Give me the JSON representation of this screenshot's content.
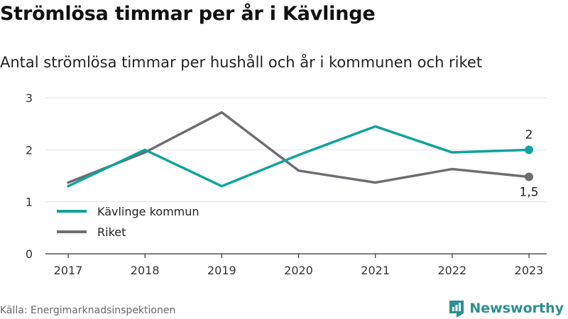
{
  "title": "Strömlösa timmar per år i Kävlinge",
  "subtitle": "Antal strömlösa timmar per hushåll och år i kommunen och riket",
  "source": "Källa: Energimarknadsinspektionen",
  "brand": {
    "name": "Newsworthy",
    "icon": "newsworthy-logo-icon",
    "color": "#2a8f91"
  },
  "chart_data": {
    "type": "line",
    "title": "Strömlösa timmar per år i Kävlinge",
    "subtitle": "Antal strömlösa timmar per hushåll och år i kommunen och riket",
    "xlabel": "",
    "ylabel": "",
    "x": [
      "2017",
      "2018",
      "2019",
      "2020",
      "2021",
      "2022",
      "2023"
    ],
    "ylim": [
      0,
      3
    ],
    "yticks": [
      "0",
      "1",
      "2",
      "3"
    ],
    "grid": "horizontal",
    "legend": "bottom-left",
    "series": [
      {
        "name": "Kävlinge kommun",
        "color": "#11a39b",
        "values": [
          1.3,
          2.0,
          1.3,
          1.9,
          2.45,
          1.95,
          2.0
        ],
        "end_label": "2"
      },
      {
        "name": "Riket",
        "color": "#6d6d72",
        "values": [
          1.37,
          1.95,
          2.72,
          1.6,
          1.37,
          1.63,
          1.48
        ],
        "end_label": "1,5"
      }
    ]
  }
}
